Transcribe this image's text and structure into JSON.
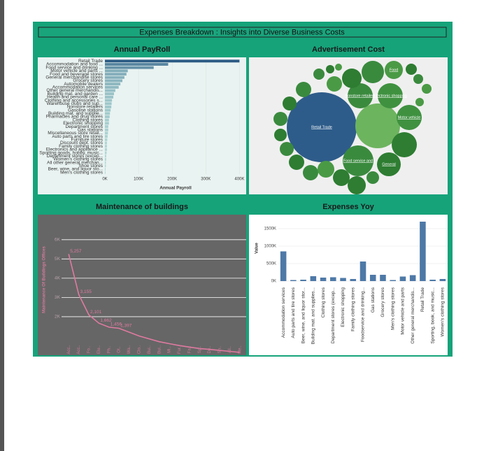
{
  "title": "Expenses Breakdown : Insights into Diverse Business Costs",
  "chart_data": [
    {
      "type": "hbar",
      "title": "Annual PayRoll",
      "x_label": "Annual Payroll",
      "categories": [
        "Retail Trade",
        "Accommodation and food ...",
        "Food service and drinking ...",
        "Motor vehicle and parts ...",
        "Food and beverage stores",
        "General merchandise stores",
        "Grocery stores",
        "Automobile dealers",
        "Accommodation services",
        "Other general merchandis...",
        "Building mat. and garden ...",
        "Health and personal care ...",
        "Clothing and accessories s...",
        "Warehouse clubs and sup...",
        "Nonstore retailers",
        "Gasoline stations",
        "Building mat. and supplie...",
        "Pharmacies and drug stores",
        "Clothing stores",
        "Electronic shopping",
        "Department stores",
        "Gas stations",
        "Miscellaneous store retail...",
        "Auto parts and tire stores",
        "Furniture stores",
        "Discount dept. stores",
        "Family clothing stores",
        "Electronics and appliance ...",
        "Sporting goods, hobby, music...",
        "Department stores (excep...",
        "Women's clothing stores",
        "All other general merchan...",
        "Shoe stores",
        "Beer, wine, and liquor sto...",
        "Men's clothing stores"
      ],
      "values": [
        400000,
        188000,
        145000,
        68000,
        64000,
        58000,
        52000,
        46000,
        41000,
        31000,
        27000,
        25000,
        21000,
        20000,
        19000,
        17000,
        15000,
        14000,
        12000,
        12000,
        10000,
        10000,
        9000,
        8000,
        7000,
        6000,
        6000,
        6000,
        5000,
        4000,
        4000,
        3000,
        3000,
        2000,
        2000
      ],
      "color_scale": [
        "#bfe6df",
        "#2b5b84"
      ],
      "xlim": [
        0,
        420000
      ],
      "xticks": [
        {
          "value": 0,
          "label": "0K"
        },
        {
          "value": 100000,
          "label": "100K"
        },
        {
          "value": 200000,
          "label": "200K"
        },
        {
          "value": 300000,
          "label": "300K"
        },
        {
          "value": 400000,
          "label": "400K"
        }
      ]
    },
    {
      "type": "bubble",
      "title": "Advertisement Cost",
      "categories": [
        "Retail Trade",
        null,
        "Food service and",
        "General",
        "Motor vehicle",
        "Electronic shopping",
        "Nonstore retailers",
        "Food",
        null,
        null,
        null,
        null,
        null,
        null,
        null,
        null,
        null,
        null,
        null,
        null,
        null,
        null,
        null,
        null,
        null,
        null,
        null,
        null,
        null,
        null
      ],
      "values": [
        2500,
        1024,
        484,
        289,
        324,
        324,
        324,
        169,
        256,
        196,
        121,
        64,
        36,
        25,
        64,
        49,
        49,
        324,
        36,
        121,
        100,
        100,
        81,
        100,
        121,
        121,
        144,
        144,
        169,
        81
      ],
      "colors": [
        "#2e5c8a",
        "#6db45f",
        "#3a8a3e",
        "#2e7d32",
        "#3f9140",
        "#3f9140",
        "#3a8a3e",
        "#4a9a45",
        "#3a8a3e",
        "#2e7d32",
        "#4a9a45",
        "#3a8a3e",
        "#2e7d32",
        "#4a9a45",
        "#2e7d32",
        "#3a8a3e",
        "#4a9a45",
        "#2e7d32",
        "#4a9a45",
        "#3a8a3e",
        "#2e7d32",
        "#3a8a3e",
        "#2e7d32",
        "#3a8a3e",
        "#2e7d32",
        "#3a8a3e",
        "#4a9a45",
        "#2e7d32",
        "#2e7d32",
        "#3a8a3e"
      ]
    },
    {
      "type": "line",
      "title": "Maintenance of buildings",
      "y_label": "Maintenance Of Buildings Offices",
      "categories": [
        "Acc..",
        "Acc..",
        "Fo..",
        "Ele..",
        "Ph..",
        "Ot..",
        "Wa..",
        "Clo..",
        "Bui..",
        "Bui..",
        "Mi..",
        "Fur..",
        "Fa..",
        "Sp..",
        "De..",
        "Sh..",
        "All..",
        "Me.."
      ],
      "values": [
        5257,
        3155,
        2101,
        1662,
        1456,
        1397,
        1200,
        1000,
        850,
        700,
        600,
        500,
        420,
        350,
        300,
        250,
        200,
        150
      ],
      "value_labels": [
        "5,257",
        "3,155",
        "2,101",
        "1,662",
        "1,456",
        "1,397",
        null,
        null,
        null,
        null,
        null,
        null,
        null,
        null,
        null,
        null,
        null,
        null
      ],
      "color": "#e07aa0",
      "grid": true,
      "ylim": [
        0,
        7300
      ],
      "yticks": [
        {
          "value": 2000,
          "label": "2K"
        },
        {
          "value": 3000,
          "label": "3K"
        },
        {
          "value": 4000,
          "label": "4K"
        },
        {
          "value": 5000,
          "label": "5K"
        },
        {
          "value": 6000,
          "label": "6K"
        }
      ]
    },
    {
      "type": "bar",
      "title": "Expenses Yoy",
      "y_label": "Value",
      "categories": [
        "Accommodation services",
        "Auto parts and tire stores",
        "Beer, wine, and liquor stor...",
        "Building mat. and supplies...",
        "Clothing stores",
        "Department stores (excep...",
        "Electronic shopping",
        "Family clothing stores",
        "Foodservice and drinking...",
        "Gas stations",
        "Grocery stores",
        "Men's clothing stores",
        "Motor vehicle and parts",
        "Other general merchandis...",
        "Retail Trade",
        "Sporting, book, and music...",
        "Women's clothing stores"
      ],
      "values": [
        850000,
        30000,
        40000,
        140000,
        100000,
        110000,
        90000,
        60000,
        560000,
        180000,
        180000,
        30000,
        130000,
        170000,
        1700000,
        40000,
        60000
      ],
      "color": "#4e79a7",
      "grid": true,
      "ylim": [
        0,
        1800000
      ],
      "yticks": [
        {
          "value": 0,
          "label": "0K"
        },
        {
          "value": 500000,
          "label": "500K"
        },
        {
          "value": 1000000,
          "label": "1000K"
        },
        {
          "value": 1500000,
          "label": "1500K"
        }
      ]
    }
  ]
}
